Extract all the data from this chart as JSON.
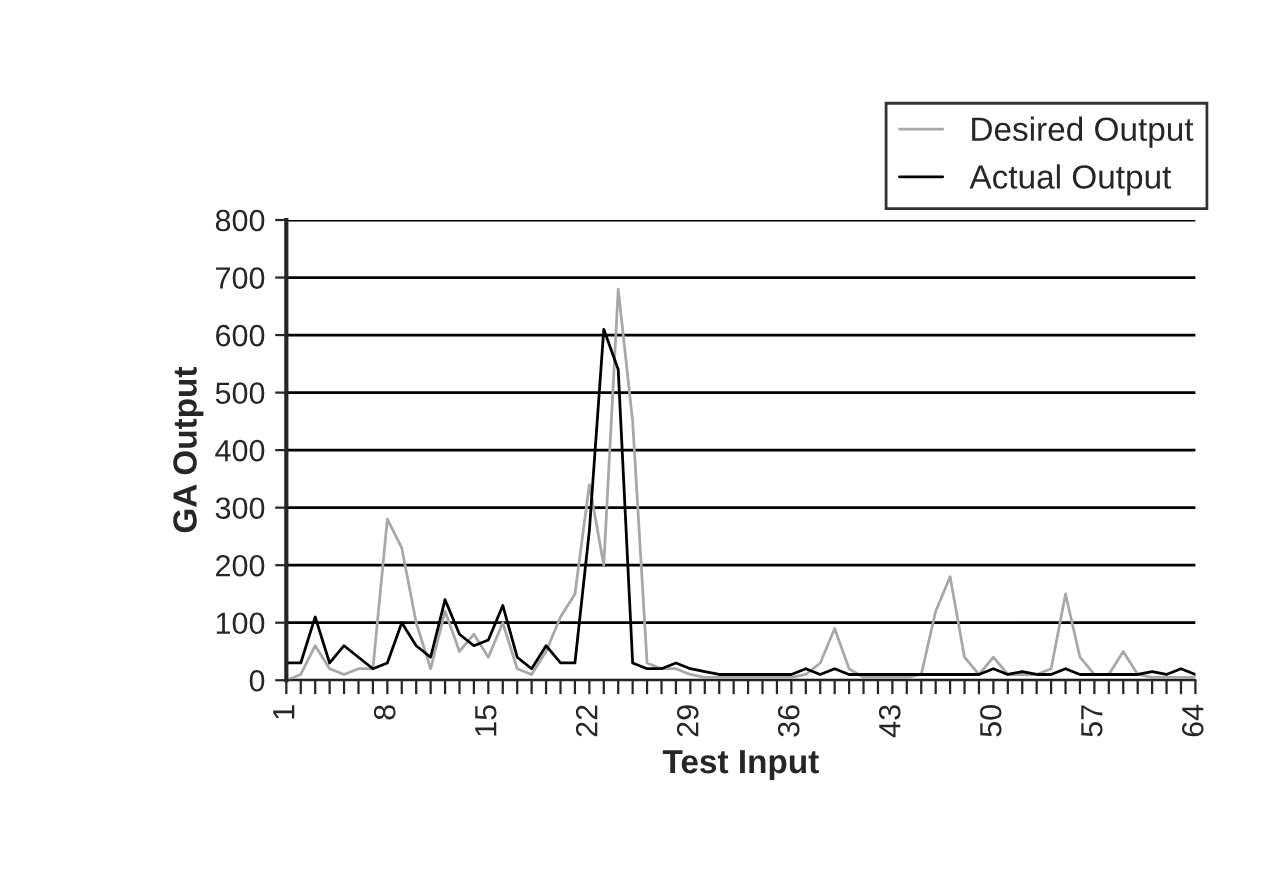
{
  "chart_data": {
    "type": "line",
    "xlabel": "Test Input",
    "ylabel": "GA Output",
    "categories": [
      "1",
      null,
      null,
      null,
      null,
      null,
      null,
      "8",
      null,
      null,
      null,
      null,
      null,
      null,
      "15",
      null,
      null,
      null,
      null,
      null,
      null,
      "22",
      null,
      null,
      null,
      null,
      null,
      null,
      "29",
      null,
      null,
      null,
      null,
      null,
      null,
      "36",
      null,
      null,
      null,
      null,
      null,
      null,
      "43",
      null,
      null,
      null,
      null,
      null,
      null,
      "50",
      null,
      null,
      null,
      null,
      null,
      null,
      "57",
      null,
      null,
      null,
      null,
      null,
      null,
      "64"
    ],
    "series": [
      {
        "name": "Desired Output",
        "color": "#a8a8a8",
        "values": [
          0,
          10,
          60,
          20,
          10,
          20,
          20,
          280,
          230,
          100,
          20,
          120,
          50,
          80,
          40,
          100,
          20,
          10,
          50,
          110,
          150,
          340,
          200,
          680,
          450,
          30,
          20,
          20,
          10,
          5,
          5,
          5,
          5,
          5,
          5,
          5,
          10,
          30,
          90,
          20,
          5,
          5,
          5,
          5,
          10,
          120,
          180,
          40,
          10,
          40,
          10,
          10,
          10,
          20,
          150,
          40,
          10,
          10,
          50,
          10,
          5,
          5,
          5,
          5
        ]
      },
      {
        "name": "Actual Output",
        "color": "#000000",
        "values": [
          30,
          30,
          110,
          30,
          60,
          40,
          20,
          30,
          100,
          60,
          40,
          140,
          80,
          60,
          70,
          130,
          40,
          20,
          60,
          30,
          30,
          260,
          610,
          540,
          30,
          20,
          20,
          30,
          20,
          15,
          10,
          10,
          10,
          10,
          10,
          10,
          20,
          10,
          20,
          10,
          10,
          10,
          10,
          10,
          10,
          10,
          10,
          10,
          10,
          20,
          10,
          15,
          10,
          10,
          20,
          10,
          10,
          10,
          10,
          10,
          15,
          10,
          20,
          10
        ]
      }
    ],
    "ylim": [
      0,
      800
    ],
    "yticks": [
      0,
      100,
      200,
      300,
      400,
      500,
      600,
      700,
      800
    ],
    "grid": "y",
    "legend": "top right"
  }
}
